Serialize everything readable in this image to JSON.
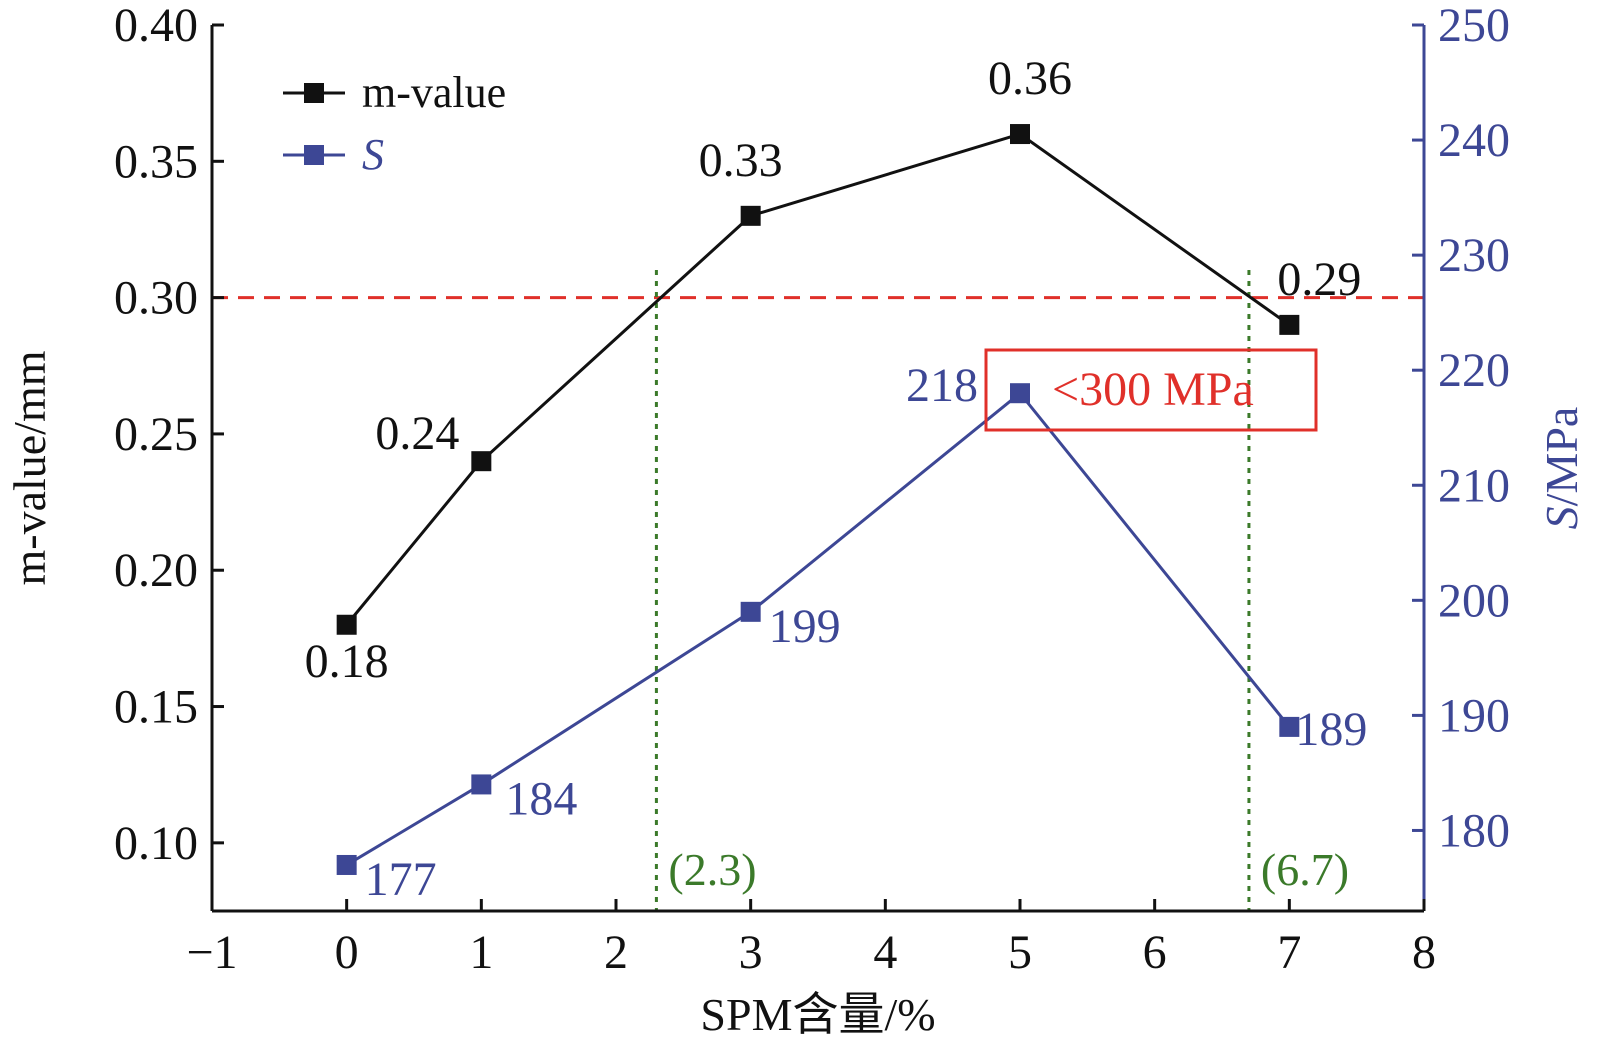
{
  "chart_data": {
    "type": "line",
    "xlabel": "SPM含量/%",
    "ylabel_left": "m-value/mm",
    "ylabel_right_italic": "S",
    "ylabel_right_rest": "/MPa",
    "xlim": [
      -1,
      8
    ],
    "x_ticks": [
      -1,
      0,
      1,
      2,
      3,
      4,
      5,
      6,
      7,
      8
    ],
    "x_tick_labels": [
      "−1",
      "0",
      "1",
      "2",
      "3",
      "4",
      "5",
      "6",
      "7",
      "8"
    ],
    "ylim_left": [
      0.075,
      0.4
    ],
    "y_ticks_left": [
      "0.10",
      "0.15",
      "0.20",
      "0.25",
      "0.30",
      "0.35",
      "0.40"
    ],
    "ylim_right": [
      173,
      250
    ],
    "y_ticks_right": [
      "180",
      "190",
      "200",
      "210",
      "220",
      "230",
      "240",
      "250"
    ],
    "series": [
      {
        "name": "m-value",
        "axis": "left",
        "color": "#111111",
        "x": [
          0,
          1,
          3,
          5,
          7
        ],
        "values": [
          0.18,
          0.24,
          0.33,
          0.36,
          0.29
        ],
        "labels": [
          "0.18",
          "0.24",
          "0.33",
          "0.36",
          "0.29"
        ]
      },
      {
        "name": "S",
        "axis": "right",
        "color": "#3d4795",
        "x": [
          0,
          1,
          3,
          5,
          7
        ],
        "values": [
          177,
          184,
          199,
          218,
          189
        ],
        "labels": [
          "177",
          "184",
          "199",
          "218",
          "189"
        ]
      }
    ],
    "reference_line": {
      "axis": "left",
      "value": 0.3,
      "color": "#e0302a",
      "style": "dashed"
    },
    "vertical_lines": [
      {
        "x": 2.3,
        "label": "(2.3)",
        "color": "#3b7a2a",
        "style": "dotted"
      },
      {
        "x": 6.7,
        "label": "(6.7)",
        "color": "#3b7a2a",
        "style": "dotted"
      }
    ],
    "annotation_box": {
      "text": "<300 MPa",
      "color": "#e0302a"
    },
    "legend_placement": "top-left",
    "grid": false,
    "colors": {
      "left_axis": "#111111",
      "right_axis": "#3d4795"
    }
  }
}
